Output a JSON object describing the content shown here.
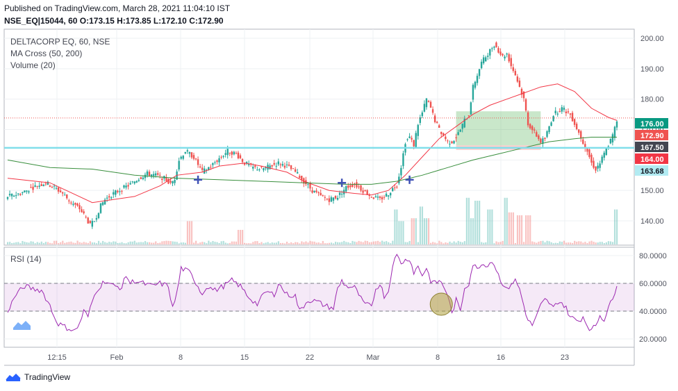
{
  "header": {
    "published": "Published on TradingView.com, March 28, 2021 11:04:10 IST",
    "symbol_line": "NSE_EQ|15044, 60 O:173.15 H:173.85 L:172.10 C:172.90"
  },
  "legend": {
    "title": "DELTACORP EQ, 60, NSE",
    "ma": "MA Cross (50, 200)",
    "volume": "Volume (20)"
  },
  "rsi": {
    "label": "RSI (14)"
  },
  "brand": "TradingView",
  "colors": {
    "up": "#26a69a",
    "down": "#ef5350",
    "ma50": "#f23645",
    "ma200": "#388e3c",
    "rsi": "#9c27b0",
    "level": "#80deea"
  },
  "chart_data": [
    {
      "type": "candlestick",
      "title": "DELTACORP EQ, 60, NSE",
      "ylim": [
        132,
        203
      ],
      "yticks": [
        "140.00",
        "150.00",
        "160.00",
        "170.00",
        "180.00",
        "190.00",
        "200.00"
      ],
      "xticks": [
        "12:15",
        "Feb",
        "8",
        "15",
        "22",
        "Mar",
        "8",
        "16",
        "23"
      ],
      "close_path": [
        [
          0,
          148
        ],
        [
          3,
          149
        ],
        [
          6,
          151
        ],
        [
          9,
          152.5
        ],
        [
          11,
          151
        ],
        [
          13,
          149
        ],
        [
          15,
          146
        ],
        [
          17,
          144
        ],
        [
          18.5,
          141
        ],
        [
          19.5,
          138.5
        ],
        [
          20.5,
          140
        ],
        [
          22,
          145
        ],
        [
          23,
          147
        ],
        [
          25,
          149
        ],
        [
          27,
          150.5
        ],
        [
          29,
          152
        ],
        [
          31,
          154
        ],
        [
          33,
          155.5
        ],
        [
          35,
          155
        ],
        [
          37,
          154
        ],
        [
          38.5,
          152
        ],
        [
          39.5,
          154
        ],
        [
          40.5,
          160
        ],
        [
          42,
          163
        ],
        [
          44,
          161
        ],
        [
          46,
          156
        ],
        [
          48,
          158
        ],
        [
          50,
          160.5
        ],
        [
          52,
          163
        ],
        [
          54,
          162
        ],
        [
          56,
          159
        ],
        [
          58,
          157.5
        ],
        [
          60,
          157
        ],
        [
          62,
          158
        ],
        [
          64,
          159
        ],
        [
          66,
          158
        ],
        [
          68,
          156
        ],
        [
          70,
          153
        ],
        [
          72,
          150
        ],
        [
          74,
          148
        ],
        [
          76,
          147
        ],
        [
          78,
          148
        ],
        [
          80,
          151
        ],
        [
          82,
          152
        ],
        [
          84,
          150
        ],
        [
          86,
          148
        ],
        [
          88,
          147
        ],
        [
          90,
          149
        ],
        [
          92,
          152
        ],
        [
          93,
          158
        ],
        [
          94,
          166
        ],
        [
          95,
          167.5
        ],
        [
          96,
          165
        ],
        [
          97,
          172
        ],
        [
          98,
          175.5
        ],
        [
          99,
          180
        ],
        [
          100,
          177
        ],
        [
          101,
          173
        ],
        [
          102,
          170
        ],
        [
          103,
          168
        ],
        [
          104,
          166
        ],
        [
          105,
          166
        ],
        [
          106,
          167.5
        ],
        [
          107,
          170
        ],
        [
          108,
          173
        ],
        [
          109,
          175
        ],
        [
          110,
          184
        ],
        [
          111,
          188
        ],
        [
          112,
          192
        ],
        [
          113,
          194
        ],
        [
          114,
          196
        ],
        [
          115,
          198
        ],
        [
          116,
          196
        ],
        [
          117,
          194
        ],
        [
          118,
          195
        ],
        [
          119,
          191
        ],
        [
          120,
          188
        ],
        [
          121,
          184
        ],
        [
          122,
          180
        ],
        [
          123,
          172
        ],
        [
          124,
          170
        ],
        [
          125,
          168
        ],
        [
          126,
          166
        ],
        [
          127,
          167
        ],
        [
          128,
          171
        ],
        [
          129,
          175
        ],
        [
          130,
          176
        ],
        [
          131,
          177
        ],
        [
          132,
          176
        ],
        [
          133,
          175
        ],
        [
          134,
          172
        ],
        [
          135,
          169
        ],
        [
          136,
          166
        ],
        [
          137,
          163
        ],
        [
          138,
          159
        ],
        [
          139,
          157
        ],
        [
          140,
          159
        ],
        [
          141,
          162
        ],
        [
          142,
          165
        ],
        [
          143,
          168
        ],
        [
          144,
          172.9
        ]
      ],
      "ma50_path": [
        [
          0,
          154
        ],
        [
          10,
          152.5
        ],
        [
          20,
          146
        ],
        [
          30,
          148
        ],
        [
          36,
          151.5
        ],
        [
          40,
          155
        ],
        [
          46,
          156
        ],
        [
          50,
          158
        ],
        [
          56,
          159
        ],
        [
          60,
          158
        ],
        [
          66,
          156
        ],
        [
          70,
          153
        ],
        [
          76,
          150
        ],
        [
          82,
          149
        ],
        [
          86,
          148.5
        ],
        [
          90,
          150
        ],
        [
          94,
          155
        ],
        [
          98,
          161
        ],
        [
          102,
          167
        ],
        [
          106,
          171
        ],
        [
          110,
          175
        ],
        [
          114,
          178
        ],
        [
          118,
          180
        ],
        [
          122,
          182
        ],
        [
          126,
          184
        ],
        [
          130,
          185
        ],
        [
          134,
          182.5
        ],
        [
          138,
          177
        ],
        [
          142,
          174
        ],
        [
          144,
          173
        ]
      ],
      "ma200_path": [
        [
          0,
          160
        ],
        [
          10,
          157.5
        ],
        [
          20,
          157
        ],
        [
          30,
          155
        ],
        [
          40,
          154
        ],
        [
          50,
          153.5
        ],
        [
          60,
          153
        ],
        [
          70,
          152.5
        ],
        [
          80,
          152
        ],
        [
          86,
          152
        ],
        [
          92,
          153
        ],
        [
          98,
          155
        ],
        [
          104,
          157.5
        ],
        [
          110,
          160
        ],
        [
          116,
          162
        ],
        [
          122,
          164
        ],
        [
          128,
          166
        ],
        [
          134,
          167
        ],
        [
          138,
          167.5
        ],
        [
          144,
          167.5
        ]
      ],
      "cross_markers": [
        [
          45,
          153.5
        ],
        [
          79,
          152.5
        ],
        [
          95,
          153.5
        ]
      ],
      "horizontal_levels": [
        {
          "value": 164.0,
          "label": "164.00",
          "color": "#80deea"
        },
        {
          "value": 173.8,
          "style": "dotted",
          "color": "#ef5350"
        }
      ],
      "long_position_box": {
        "x": [
          106,
          126
        ],
        "entry": 164.8,
        "target": 176.0,
        "stop": 164.0
      },
      "price_labels": [
        {
          "value": 176.0,
          "text": "176.00",
          "bg": "#089981"
        },
        {
          "value": 172.9,
          "text": "172.90",
          "bg": "#ef5350"
        },
        {
          "value": 167.5,
          "text": "167.50",
          "bg": "#434651"
        },
        {
          "value": 164.0,
          "text": "164.00",
          "bg": "#f23645"
        },
        {
          "value": 163.68,
          "text": "163.68",
          "bg": "#b2ebf2"
        }
      ],
      "volume_spikes": [
        [
          43,
          8
        ],
        [
          55,
          5
        ],
        [
          92,
          12
        ],
        [
          93,
          8
        ],
        [
          96,
          9
        ],
        [
          98,
          13
        ],
        [
          99,
          9
        ],
        [
          109,
          16
        ],
        [
          110,
          9
        ],
        [
          111,
          15
        ],
        [
          114,
          12
        ],
        [
          118,
          16
        ],
        [
          119,
          11
        ],
        [
          121,
          10
        ],
        [
          123,
          10
        ],
        [
          144,
          12
        ]
      ]
    },
    {
      "type": "line",
      "title": "RSI (14)",
      "ylim": [
        14,
        86
      ],
      "yticks": [
        "20.0000",
        "40.0000",
        "60.0000",
        "80.0000"
      ],
      "band": [
        40,
        60
      ],
      "values": [
        [
          0,
          40
        ],
        [
          2,
          52
        ],
        [
          4,
          58
        ],
        [
          6,
          56
        ],
        [
          8,
          55
        ],
        [
          10,
          44
        ],
        [
          11,
          36
        ],
        [
          12,
          31
        ],
        [
          14,
          28
        ],
        [
          16,
          26
        ],
        [
          17,
          31
        ],
        [
          18,
          40
        ],
        [
          19,
          36
        ],
        [
          20,
          47
        ],
        [
          21,
          55
        ],
        [
          23,
          62
        ],
        [
          25,
          58
        ],
        [
          27,
          57
        ],
        [
          28,
          66
        ],
        [
          29,
          60
        ],
        [
          30,
          62
        ],
        [
          32,
          60
        ],
        [
          34,
          58
        ],
        [
          36,
          60
        ],
        [
          38,
          58
        ],
        [
          39,
          42
        ],
        [
          40,
          53
        ],
        [
          41,
          71
        ],
        [
          43,
          68
        ],
        [
          45,
          58
        ],
        [
          46,
          52
        ],
        [
          47,
          58
        ],
        [
          49,
          55
        ],
        [
          51,
          58
        ],
        [
          53,
          62
        ],
        [
          55,
          58
        ],
        [
          57,
          50
        ],
        [
          59,
          45
        ],
        [
          61,
          54
        ],
        [
          63,
          52
        ],
        [
          64,
          60
        ],
        [
          66,
          52
        ],
        [
          68,
          51
        ],
        [
          69,
          40
        ],
        [
          71,
          48
        ],
        [
          73,
          47
        ],
        [
          75,
          44
        ],
        [
          77,
          42
        ],
        [
          78,
          56
        ],
        [
          79,
          62
        ],
        [
          80,
          58
        ],
        [
          82,
          57
        ],
        [
          83,
          52
        ],
        [
          84,
          46
        ],
        [
          86,
          43
        ],
        [
          87,
          56
        ],
        [
          88,
          60
        ],
        [
          89,
          51
        ],
        [
          90,
          54
        ],
        [
          91,
          74
        ],
        [
          92,
          80
        ],
        [
          93,
          75
        ],
        [
          95,
          78
        ],
        [
          96,
          68
        ],
        [
          97,
          72
        ],
        [
          98,
          66
        ],
        [
          99,
          71
        ],
        [
          100,
          62
        ],
        [
          101,
          60
        ],
        [
          102,
          62
        ],
        [
          103,
          58
        ],
        [
          104,
          52
        ],
        [
          105,
          38
        ],
        [
          106,
          48
        ],
        [
          107,
          40
        ],
        [
          108,
          57
        ],
        [
          109,
          60
        ],
        [
          110,
          74
        ],
        [
          111,
          70
        ],
        [
          112,
          75
        ],
        [
          113,
          72
        ],
        [
          114,
          76
        ],
        [
          115,
          74
        ],
        [
          116,
          66
        ],
        [
          117,
          60
        ],
        [
          118,
          55
        ],
        [
          119,
          60
        ],
        [
          120,
          62
        ],
        [
          121,
          56
        ],
        [
          122,
          44
        ],
        [
          123,
          33
        ],
        [
          124,
          30
        ],
        [
          125,
          36
        ],
        [
          126,
          44
        ],
        [
          127,
          48
        ],
        [
          128,
          46
        ],
        [
          129,
          42
        ],
        [
          130,
          47
        ],
        [
          131,
          46
        ],
        [
          132,
          42
        ],
        [
          133,
          36
        ],
        [
          134,
          34
        ],
        [
          135,
          33
        ],
        [
          136,
          36
        ],
        [
          137,
          30
        ],
        [
          138,
          26
        ],
        [
          139,
          30
        ],
        [
          140,
          37
        ],
        [
          141,
          34
        ],
        [
          142,
          43
        ],
        [
          143,
          48
        ],
        [
          144,
          60
        ]
      ],
      "highlight_circle": {
        "x": 102.5,
        "y": 45
      }
    }
  ]
}
